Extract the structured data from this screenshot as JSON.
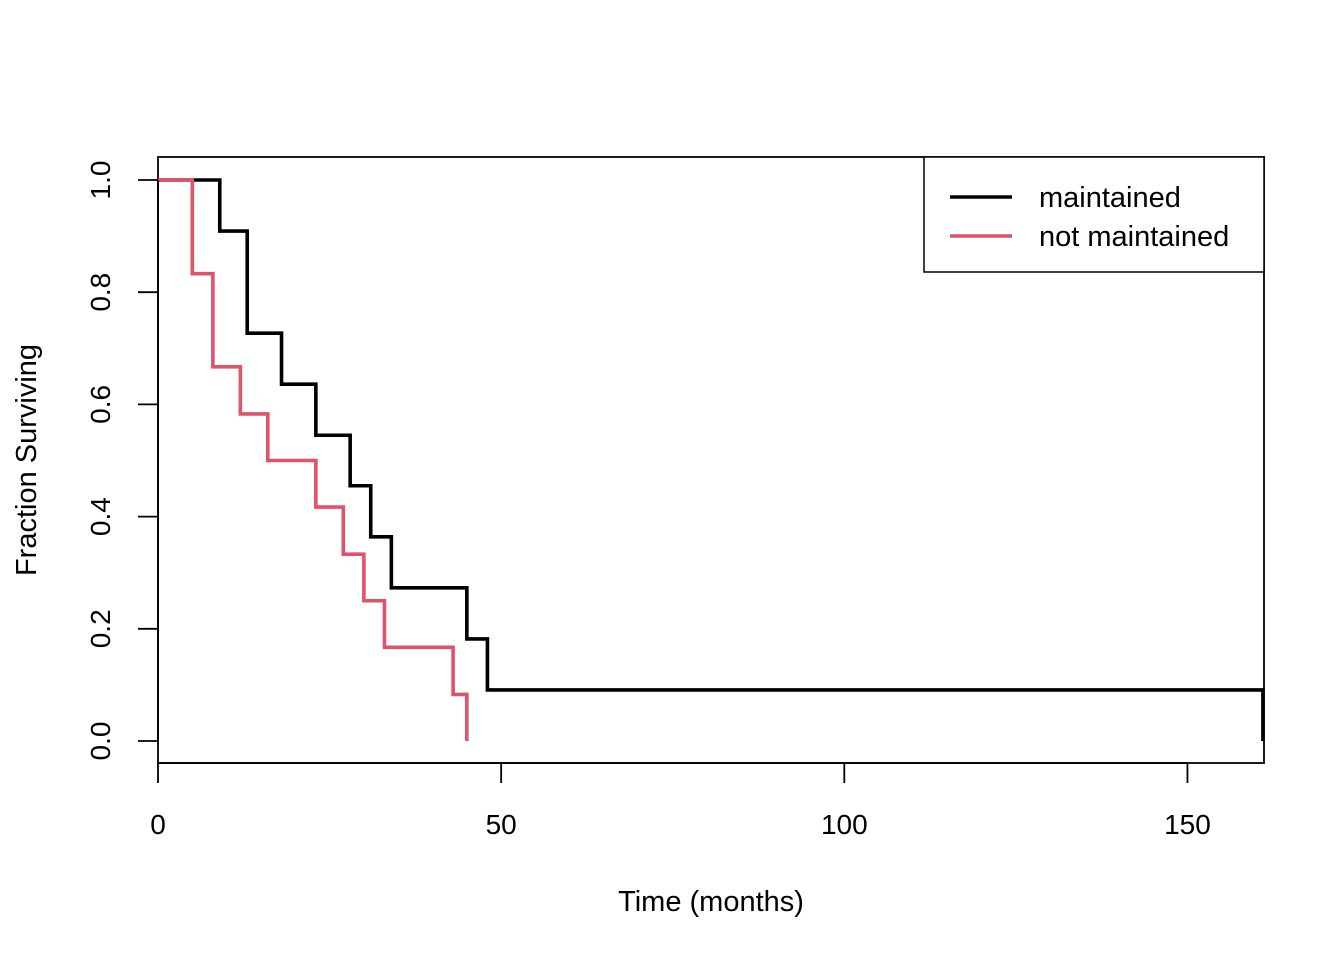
{
  "chart_data": {
    "type": "line",
    "title": "",
    "xlabel": "Time (months)",
    "ylabel": "Fraction Surviving",
    "xlim": [
      0,
      161
    ],
    "ylim": [
      0,
      1
    ],
    "x_ticks": [
      0,
      50,
      100,
      150
    ],
    "y_ticks": [
      0.0,
      0.2,
      0.4,
      0.6,
      0.8,
      1.0
    ],
    "x_tick_labels": [
      "0",
      "50",
      "100",
      "150"
    ],
    "y_tick_labels": [
      "0.0",
      "0.2",
      "0.4",
      "0.6",
      "0.8",
      "1.0"
    ],
    "grid": false,
    "legend_position": "top-right",
    "step": true,
    "series": [
      {
        "name": "maintained",
        "color": "#000000",
        "x": [
          0,
          9,
          13,
          18,
          23,
          28,
          31,
          34,
          45,
          48,
          161,
          161
        ],
        "y": [
          1.0,
          0.909,
          0.727,
          0.636,
          0.545,
          0.455,
          0.364,
          0.273,
          0.182,
          0.091,
          0.091,
          0.0
        ]
      },
      {
        "name": "not maintained",
        "color": "#DF536B",
        "x": [
          0,
          5,
          8,
          12,
          16,
          23,
          27,
          30,
          33,
          43,
          45
        ],
        "y": [
          1.0,
          0.833,
          0.667,
          0.583,
          0.5,
          0.417,
          0.333,
          0.25,
          0.167,
          0.083,
          0.0
        ]
      }
    ]
  }
}
